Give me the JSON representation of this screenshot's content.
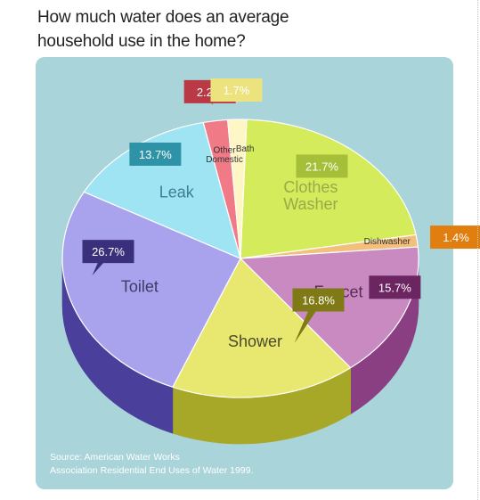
{
  "title_lines": [
    "How much water does an average",
    "household use in the home?"
  ],
  "source_lines": [
    "Source: American Water Works",
    "Association Residential End Uses of Water 1999."
  ],
  "chart_data": {
    "type": "pie",
    "title": "How much water does an average household use in the home?",
    "slices": [
      {
        "label": "Clothes Washer",
        "label_lines": [
          "Clothes",
          "Washer"
        ],
        "value": 21.7,
        "value_label": "21.7%",
        "color": "#d4ec5c",
        "dark": "#9aab2e",
        "callout": "#a6bf38",
        "callout_text": "#ffffff",
        "label_color": "#9aa94a"
      },
      {
        "label": "Dishwasher",
        "label_lines": [
          "Dishwasher"
        ],
        "value": 1.4,
        "value_label": "1.4%",
        "color": "#f2c07c",
        "dark": "#b58240",
        "callout": "#e07f10",
        "callout_text": "#ffffff",
        "label_color": "#333333"
      },
      {
        "label": "Faucet",
        "label_lines": [
          "Faucet"
        ],
        "value": 15.7,
        "value_label": "15.7%",
        "color": "#c88ac0",
        "dark": "#8a3f82",
        "callout": "#6b2561",
        "callout_text": "#ffffff",
        "label_color": "#5a2a55"
      },
      {
        "label": "Shower",
        "label_lines": [
          "Shower"
        ],
        "value": 16.8,
        "value_label": "16.8%",
        "color": "#e8e870",
        "dark": "#a8a828",
        "callout": "#7f7a16",
        "callout_text": "#ffffff",
        "label_color": "#4a4a2a"
      },
      {
        "label": "Toilet",
        "label_lines": [
          "Toilet"
        ],
        "value": 26.7,
        "value_label": "26.7%",
        "color": "#a9a3ee",
        "dark": "#4a3f9a",
        "callout": "#3a2f7a",
        "callout_text": "#ffffff",
        "label_color": "#3f3a6a"
      },
      {
        "label": "Leak",
        "label_lines": [
          "Leak"
        ],
        "value": 13.7,
        "value_label": "13.7%",
        "color": "#9ee4f3",
        "dark": "#4c9fb2",
        "callout": "#2f93a7",
        "callout_text": "#ffffff",
        "label_color": "#3f7f96"
      },
      {
        "label": "Other Domestic",
        "label_lines": [
          "Other",
          "Domestic"
        ],
        "value": 2.2,
        "value_label": "2.2%",
        "color": "#f07a86",
        "dark": "#b03a48",
        "callout": "#b93a44",
        "callout_text": "#ffffff",
        "label_color": "#333333"
      },
      {
        "label": "Bath",
        "label_lines": [
          "Bath"
        ],
        "value": 1.7,
        "value_label": "1.7%",
        "color": "#fff6c6",
        "dark": "#c8be80",
        "callout": "#ece27e",
        "callout_text": "#ffffff",
        "label_color": "#333333"
      }
    ],
    "legend": "none"
  }
}
